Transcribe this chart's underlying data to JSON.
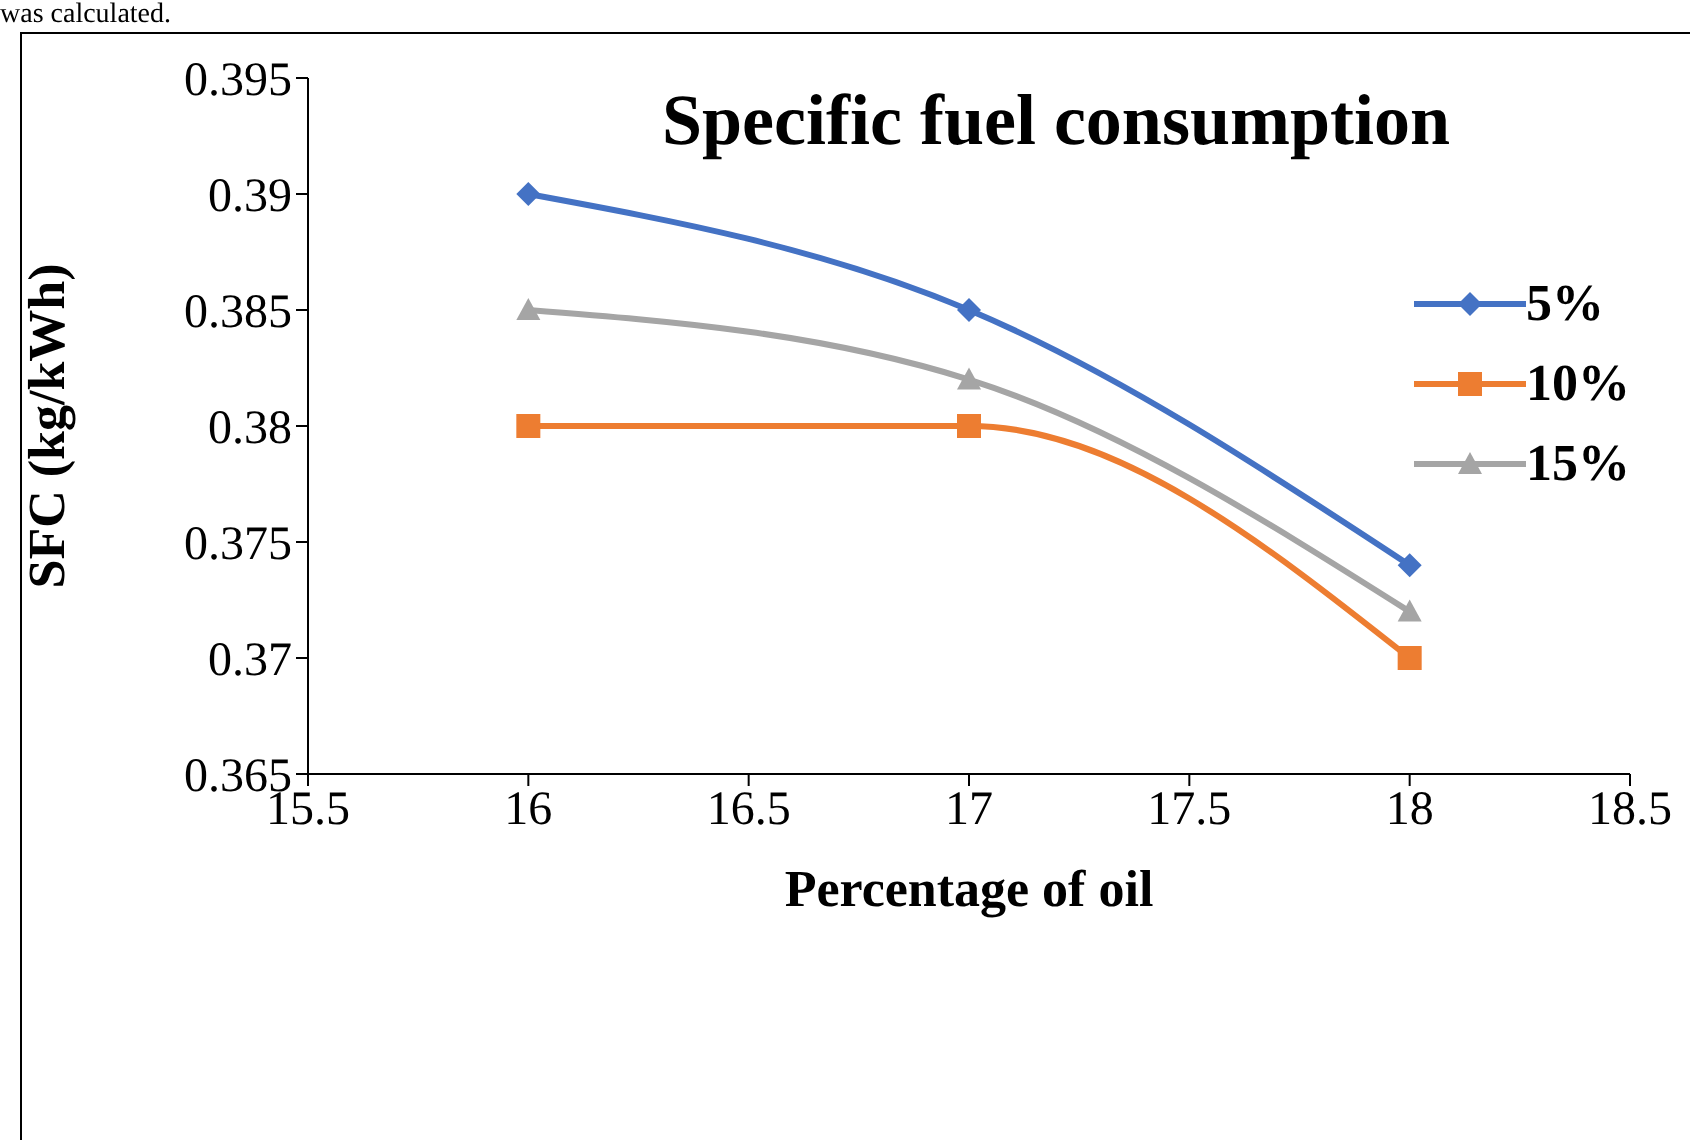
{
  "chart_data": {
    "type": "line",
    "title": "Specific fuel consumption",
    "xlabel": "Percentage of oil",
    "ylabel": "SFC (kg/kWh)",
    "annotations": [
      "was calculated."
    ],
    "x": [
      16,
      17,
      18
    ],
    "series": [
      {
        "name": "5%",
        "color": "#4472c4",
        "marker": "diamond",
        "values": [
          0.39,
          0.385,
          0.374
        ]
      },
      {
        "name": "10%",
        "color": "#ed7d31",
        "marker": "square",
        "values": [
          0.38,
          0.38,
          0.37
        ]
      },
      {
        "name": "15%",
        "color": "#a5a5a5",
        "marker": "triangle",
        "values": [
          0.385,
          0.382,
          0.372
        ]
      }
    ],
    "xlim": [
      15.5,
      18.5
    ],
    "xticks": [
      15.5,
      16,
      16.5,
      17,
      17.5,
      18,
      18.5
    ],
    "ylim": [
      0.365,
      0.395
    ],
    "yticks": [
      0.365,
      0.37,
      0.375,
      0.38,
      0.385,
      0.39,
      0.395
    ],
    "grid": false,
    "legend": "right",
    "line_style": "solid"
  }
}
